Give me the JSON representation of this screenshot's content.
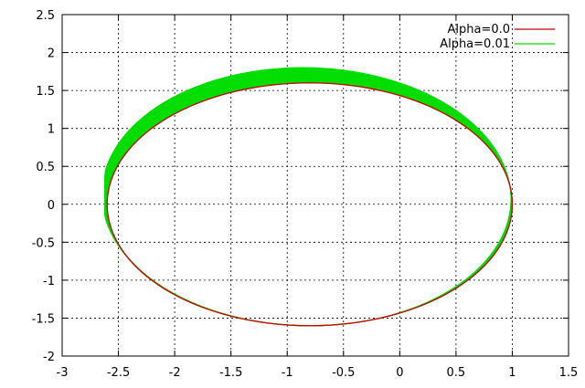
{
  "chart_data": {
    "type": "line",
    "title": "",
    "xlabel": "",
    "ylabel": "",
    "xlim": [
      -3,
      1.5
    ],
    "ylim": [
      -2,
      2.5
    ],
    "x_ticks": [
      "-3",
      "-2.5",
      "-2",
      "-1.5",
      "-1",
      "-0.5",
      "0",
      "0.5",
      "1",
      "1.5"
    ],
    "y_ticks": [
      "-2",
      "-1.5",
      "-1",
      "-0.5",
      "0",
      "0.5",
      "1",
      "1.5",
      "2",
      "2.5"
    ],
    "grid": true,
    "legend_position": "top-right",
    "series": [
      {
        "name": "Alpha=0.0",
        "color": "#cc0000",
        "shape": "closed orbit, single ellipse",
        "x_range": [
          -2.6,
          1.0
        ],
        "y_range": [
          -1.6,
          1.6
        ],
        "orbits": 1
      },
      {
        "name": "Alpha=0.01",
        "color": "#00dd00",
        "shape": "precessing orbit, repeated ellipses",
        "x_range": [
          -2.62,
          1.03
        ],
        "y_range": [
          -1.6,
          2.05
        ],
        "orbits": 30
      }
    ]
  }
}
